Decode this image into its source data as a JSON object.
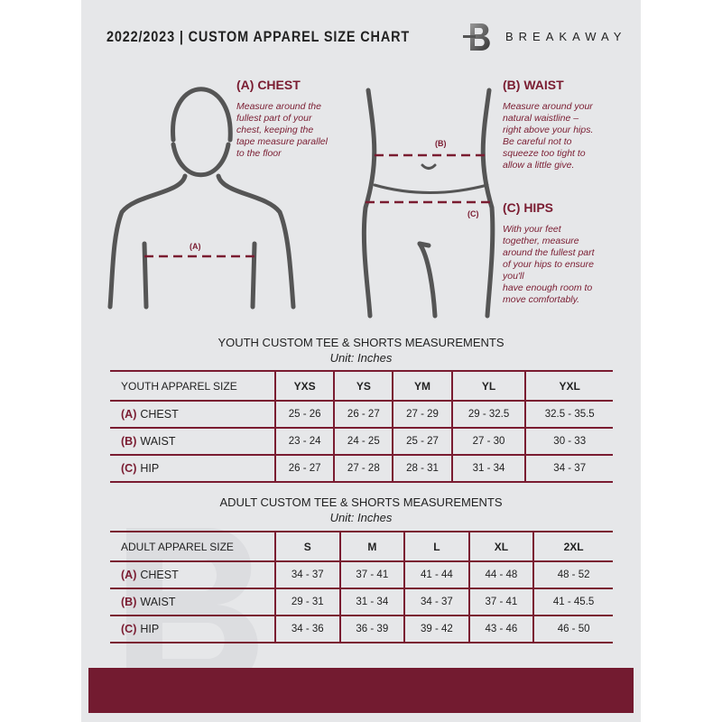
{
  "header": {
    "title": "2022/2023  |  CUSTOM APPAREL SIZE CHART",
    "brand": "BREAKAWAY",
    "logo_letter": "B"
  },
  "colors": {
    "accent": "#7a1c31",
    "background": "#e6e7e9",
    "footer": "#731b30"
  },
  "measurements": {
    "chest": {
      "heading": "(A) CHEST",
      "marker": "(A)",
      "text": [
        "Measure around the",
        "fullest part of your",
        "chest, keeping the",
        "tape measure parallel",
        "to the floor"
      ]
    },
    "waist": {
      "heading": "(B) WAIST",
      "marker": "(B)",
      "text": [
        "Measure around your",
        "natural waistline –",
        "right above your hips.",
        "Be careful not to",
        "squeeze too tight to",
        "allow a little give."
      ]
    },
    "hips": {
      "heading": "(C) HIPS",
      "marker": "(C)",
      "text": [
        "With your feet",
        "together, measure",
        "around the fullest part",
        "of your hips to ensure",
        "you'll",
        "have enough room to",
        "move comfortably."
      ]
    }
  },
  "youth": {
    "title": "YOUTH CUSTOM TEE & SHORTS MEASUREMENTS",
    "unit": "Unit: Inches",
    "header": [
      "YOUTH APPAREL SIZE",
      "YXS",
      "YS",
      "YM",
      "YL",
      "YXL"
    ],
    "rows": [
      {
        "code": "(A)",
        "label": "CHEST",
        "values": [
          "25 - 26",
          "26 - 27",
          "27 - 29",
          "29 - 32.5",
          "32.5 - 35.5"
        ]
      },
      {
        "code": "(B)",
        "label": "WAIST",
        "values": [
          "23 - 24",
          "24 - 25",
          "25 - 27",
          "27 - 30",
          "30 - 33"
        ]
      },
      {
        "code": "(C)",
        "label": "HIP",
        "values": [
          "26 - 27",
          "27 - 28",
          "28 - 31",
          "31 - 34",
          "34 - 37"
        ]
      }
    ]
  },
  "adult": {
    "title": "ADULT CUSTOM TEE & SHORTS MEASUREMENTS",
    "unit": "Unit: Inches",
    "header": [
      "ADULT APPAREL SIZE",
      "S",
      "M",
      "L",
      "XL",
      "2XL"
    ],
    "rows": [
      {
        "code": "(A)",
        "label": "CHEST",
        "values": [
          "34 - 37",
          "37 - 41",
          "41 - 44",
          "44 - 48",
          "48 - 52"
        ]
      },
      {
        "code": "(B)",
        "label": "WAIST",
        "values": [
          "29 - 31",
          "31 - 34",
          "34 - 37",
          "37 - 41",
          "41 - 45.5"
        ]
      },
      {
        "code": "(C)",
        "label": "HIP",
        "values": [
          "34 - 36",
          "36 - 39",
          "39 - 42",
          "43 - 46",
          "46 - 50"
        ]
      }
    ]
  }
}
